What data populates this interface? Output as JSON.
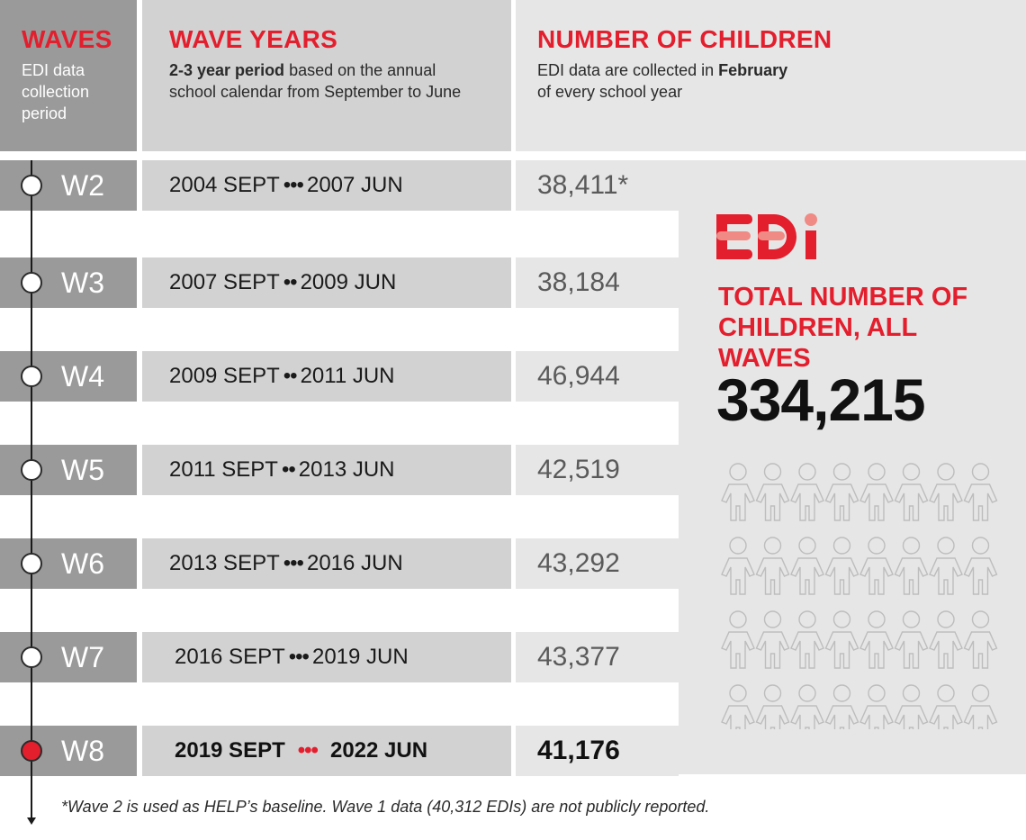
{
  "header": {
    "waves_title": "WAVES",
    "waves_sub": [
      "EDI data",
      "collection",
      "period"
    ],
    "years_title": "WAVE YEARS",
    "years_sub_bold": "2-3 year period",
    "years_sub_rest1": " based on the  annual",
    "years_sub_line2": "school calendar from September to June",
    "count_title": "NUMBER OF CHILDREN",
    "count_sub_1": "EDI data are collected in ",
    "count_sub_bold": "February",
    "count_sub_line2": "of every school year"
  },
  "waves": [
    {
      "label": "W2",
      "start": "2004 SEPT",
      "dots": "•••",
      "end": "2007 JUN",
      "count": "38,411*"
    },
    {
      "label": "W3",
      "start": "2007 SEPT",
      "dots": "••",
      "end": "2009 JUN",
      "count": "38,184"
    },
    {
      "label": "W4",
      "start": "2009 SEPT",
      "dots": "••",
      "end": "2011 JUN",
      "count": "46,944"
    },
    {
      "label": "W5",
      "start": "2011 SEPT",
      "dots": "••",
      "end": "2013 JUN",
      "count": "42,519"
    },
    {
      "label": "W6",
      "start": "2013 SEPT",
      "dots": "•••",
      "end": "2016 JUN",
      "count": "43,292"
    },
    {
      "label": "W7",
      "start": "2016 SEPT",
      "dots": "•••",
      "end": "2019 JUN",
      "count": "43,377"
    },
    {
      "label": "W8",
      "start": "2019 SEPT",
      "dots": "•••",
      "end": "2022 JUN",
      "count": "41,176"
    }
  ],
  "summary": {
    "logo_text": "EDi",
    "total_title_line1": "TOTAL NUMBER OF",
    "total_title_line2": "CHILDREN, ALL WAVES",
    "total_number": "334,215"
  },
  "footnote": "*Wave 2 is used as HELP’s baseline. Wave 1 data (40,312 EDIs) are not publicly reported.",
  "colors": {
    "accent": "#e31e2d",
    "wave_bg": "#9a9a9a",
    "year_bg": "#d2d2d2",
    "count_bg": "#e6e6e6"
  }
}
